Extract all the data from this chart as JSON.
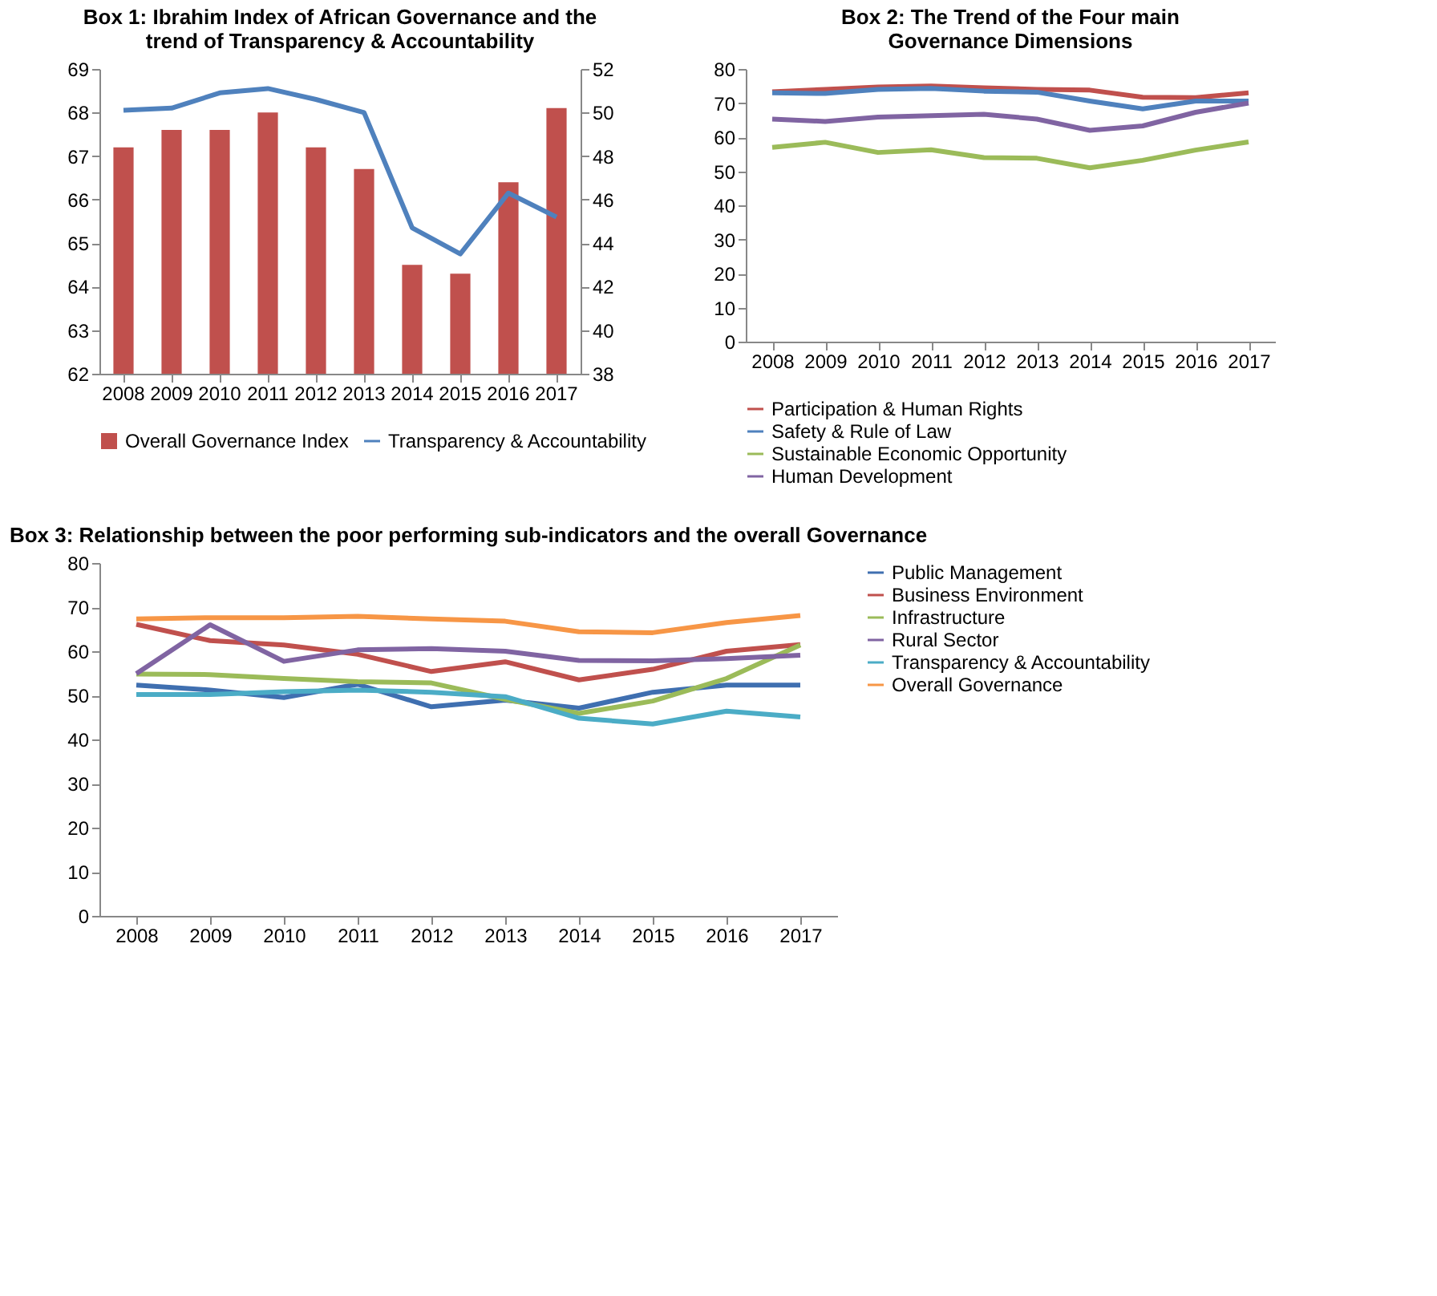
{
  "chart_data": [
    {
      "type": "bar",
      "title": "Box 1: Ibrahim Index of African Governance and the trend of Transparency & Accountability",
      "categories": [
        "2008",
        "2009",
        "2010",
        "2011",
        "2012",
        "2013",
        "2014",
        "2015",
        "2016",
        "2017"
      ],
      "series": [
        {
          "name": "Overall Governance Index",
          "type": "bar",
          "color": "#c0504d",
          "values": [
            67.2,
            67.6,
            67.6,
            68.0,
            67.2,
            66.7,
            64.5,
            64.3,
            66.4,
            68.1
          ]
        },
        {
          "name": "Transparency & Accountability",
          "type": "line",
          "axis": "y2",
          "color": "#4f81bd",
          "values": [
            50.1,
            50.2,
            50.9,
            51.1,
            50.6,
            50.0,
            44.7,
            43.5,
            46.3,
            45.2
          ]
        }
      ],
      "ylim": [
        62,
        69
      ],
      "yticks": [
        62,
        63,
        64,
        65,
        66,
        67,
        68,
        69
      ],
      "y2lim": [
        38,
        52
      ],
      "y2ticks": [
        38,
        40,
        42,
        44,
        46,
        48,
        50,
        52
      ],
      "legend": "bottom",
      "grid": false
    },
    {
      "type": "line",
      "title": "Box 2: The Trend of the Four main Governance Dimensions",
      "categories": [
        "2008",
        "2009",
        "2010",
        "2011",
        "2012",
        "2013",
        "2014",
        "2015",
        "2016",
        "2017"
      ],
      "series": [
        {
          "name": "Participation & Human Rights",
          "color": "#c0504d",
          "values": [
            73.3,
            74.0,
            74.7,
            75.0,
            74.5,
            74.0,
            73.8,
            71.7,
            71.6,
            73.0
          ]
        },
        {
          "name": "Safety & Rule of Law",
          "color": "#4f81bd",
          "values": [
            73.0,
            72.8,
            74.0,
            74.3,
            73.5,
            73.2,
            70.6,
            68.3,
            70.6,
            70.6
          ]
        },
        {
          "name": "Sustainable Economic Opportunity",
          "color": "#9bbb59",
          "values": [
            57.0,
            58.5,
            55.5,
            56.3,
            54.0,
            53.8,
            51.0,
            53.2,
            56.2,
            58.6
          ]
        },
        {
          "name": "Human Development",
          "color": "#8064a2",
          "values": [
            65.3,
            64.6,
            65.9,
            66.3,
            66.7,
            65.3,
            62.0,
            63.3,
            67.3,
            70.0
          ]
        }
      ],
      "ylim": [
        0,
        80
      ],
      "yticks": [
        0,
        10,
        20,
        30,
        40,
        50,
        60,
        70,
        80
      ],
      "legend": "bottom",
      "grid": false
    },
    {
      "type": "line",
      "title": "Box 3: Relationship between the poor performing sub-indicators and the overall Governance",
      "categories": [
        "2008",
        "2009",
        "2010",
        "2011",
        "2012",
        "2013",
        "2014",
        "2015",
        "2016",
        "2017"
      ],
      "series": [
        {
          "name": "Public Management",
          "color": "#3f6fb0",
          "values": [
            52.3,
            51.2,
            49.5,
            52.5,
            47.4,
            48.9,
            47.1,
            50.7,
            52.3,
            52.3
          ]
        },
        {
          "name": "Business Environment",
          "color": "#c0504d",
          "values": [
            66.1,
            62.4,
            61.4,
            59.3,
            55.4,
            57.6,
            53.5,
            55.9,
            60.0,
            61.5
          ]
        },
        {
          "name": "Infrastructure",
          "color": "#9bbb59",
          "values": [
            54.8,
            54.7,
            53.8,
            53.1,
            52.8,
            49.1,
            45.9,
            48.7,
            53.8,
            61.4
          ]
        },
        {
          "name": "Rural Sector",
          "color": "#8064a2",
          "values": [
            54.9,
            66.0,
            57.7,
            60.3,
            60.6,
            60.0,
            57.9,
            57.8,
            58.3,
            59.1
          ]
        },
        {
          "name": "Transparency & Accountability",
          "color": "#4bacc6",
          "values": [
            50.2,
            50.2,
            50.8,
            51.2,
            50.7,
            49.7,
            44.8,
            43.5,
            46.4,
            45.1
          ]
        },
        {
          "name": "Overall Governance",
          "color": "#f79646",
          "values": [
            67.3,
            67.6,
            67.6,
            67.9,
            67.3,
            66.8,
            64.4,
            64.2,
            66.5,
            68.1
          ]
        }
      ],
      "ylim": [
        0,
        80
      ],
      "yticks": [
        0,
        10,
        20,
        30,
        40,
        50,
        60,
        70,
        80
      ],
      "legend": "right",
      "grid": false
    }
  ]
}
